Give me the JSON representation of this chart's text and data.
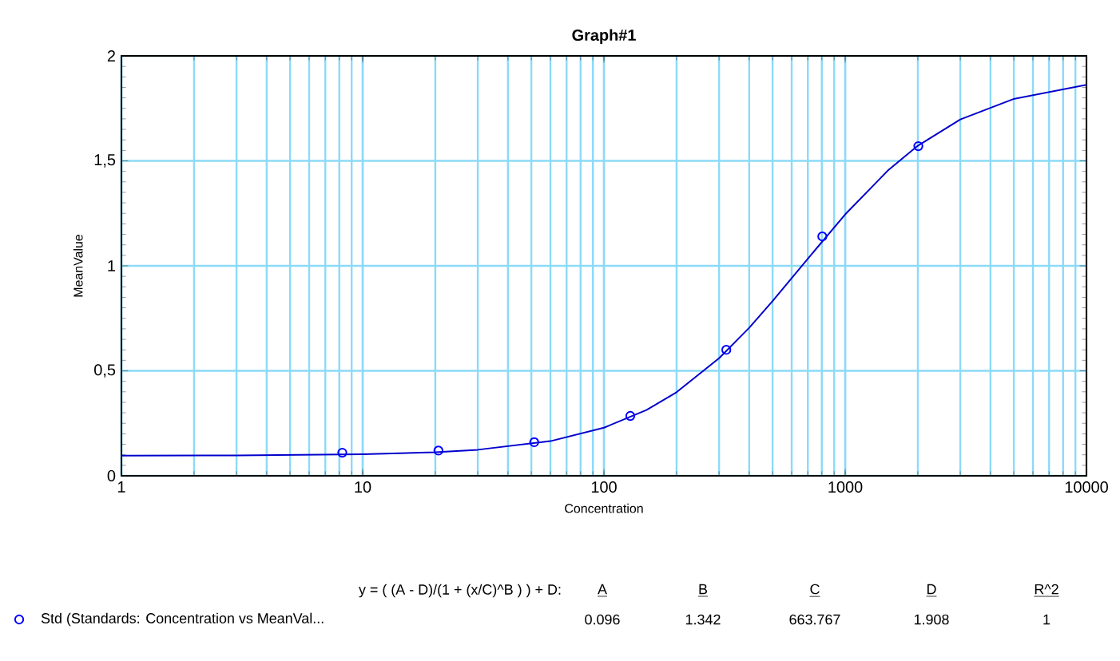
{
  "chart_data": {
    "type": "scatter",
    "title": "Graph#1",
    "xlabel": "Concentration",
    "ylabel": "MeanValue",
    "log": "x",
    "xlim": [
      1,
      10000
    ],
    "xticks": [
      1,
      10,
      100,
      1000,
      10000
    ],
    "ylim": [
      0,
      2
    ],
    "yticks": [
      0,
      {
        "value": 0.5,
        "label": "0,5"
      },
      1,
      {
        "value": 1.5,
        "label": "1,5"
      },
      2
    ],
    "grid": true,
    "legend": "bottom",
    "series": [
      {
        "name": "Std (Standards: Concentration vs MeanVal...",
        "marker": "circle",
        "color": "#0000ff",
        "x": [
          8.23,
          20.6,
          51.4,
          128.6,
          321.5,
          803.8,
          2009.5
        ],
        "values": [
          0.11,
          0.12,
          0.16,
          0.285,
          0.6,
          1.14,
          1.57
        ]
      },
      {
        "type": "line",
        "marker": "none",
        "color": "#0000cc",
        "x": [
          1,
          3,
          10,
          20,
          30,
          60,
          100,
          150,
          200,
          300,
          400,
          500,
          700,
          1000,
          1500,
          2000,
          3000,
          5000,
          10000
        ],
        "values": [
          0.096,
          0.097,
          0.103,
          0.112,
          0.124,
          0.165,
          0.229,
          0.313,
          0.398,
          0.56,
          0.705,
          0.832,
          1.034,
          1.245,
          1.453,
          1.572,
          1.697,
          1.795,
          1.862
        ]
      }
    ],
    "annotations": [
      "y = ( (A - D)/(1 + (x/C)^B ) ) + D:",
      "A",
      "B",
      "C",
      "D",
      "R^2",
      "0.096",
      "1.342",
      "663.767",
      "1.908",
      "1"
    ]
  }
}
